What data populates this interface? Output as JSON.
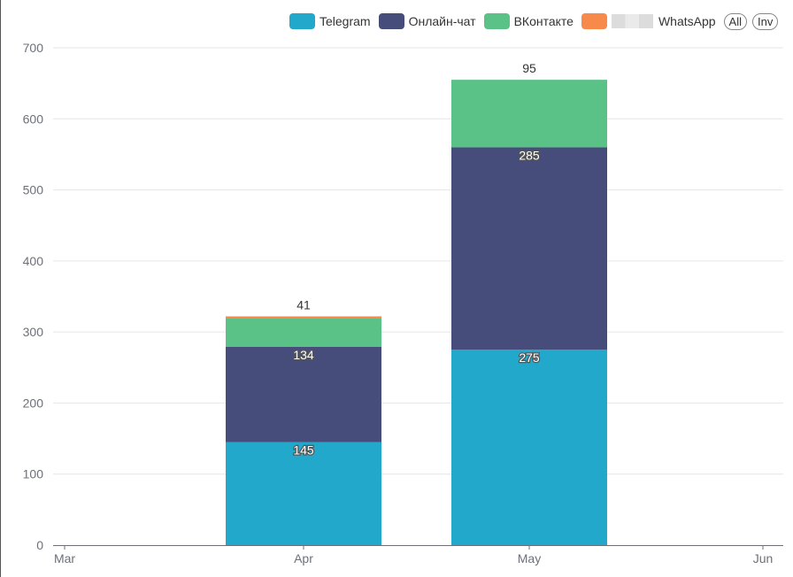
{
  "legend": {
    "items": [
      {
        "label": "Telegram",
        "color": "#21a8cb"
      },
      {
        "label": "Онлайн-чат",
        "color": "#464d7b"
      },
      {
        "label": "ВКонтакте",
        "color": "#5bc287"
      },
      {
        "label": "",
        "color": "#f7894a"
      },
      {
        "label": "WhatsApp",
        "color": ""
      }
    ],
    "all_button": "All",
    "inv_button": "Inv"
  },
  "chart_data": {
    "type": "bar",
    "stacked": true,
    "categories": [
      "Mar",
      "Apr",
      "May",
      "Jun"
    ],
    "series": [
      {
        "name": "Telegram",
        "color": "#21a8cb",
        "values": [
          0,
          145,
          275,
          0
        ],
        "labels": [
          "",
          "145",
          "275",
          ""
        ]
      },
      {
        "name": "Онлайн-чат",
        "color": "#464d7b",
        "values": [
          0,
          134,
          285,
          0
        ],
        "labels": [
          "",
          "134",
          "285",
          ""
        ]
      },
      {
        "name": "ВКонтакте",
        "color": "#5bc287",
        "values": [
          0,
          41,
          95,
          0
        ],
        "labels": [
          "",
          "41",
          "95",
          ""
        ]
      },
      {
        "name": "",
        "color": "#f7894a",
        "values": [
          0,
          2,
          0,
          0
        ],
        "labels": [
          "",
          "",
          "",
          ""
        ]
      }
    ],
    "ylim": [
      0,
      700
    ],
    "yticks": [
      0,
      100,
      200,
      300,
      400,
      500,
      600,
      700
    ],
    "grid": true,
    "legend_position": "top-right"
  }
}
